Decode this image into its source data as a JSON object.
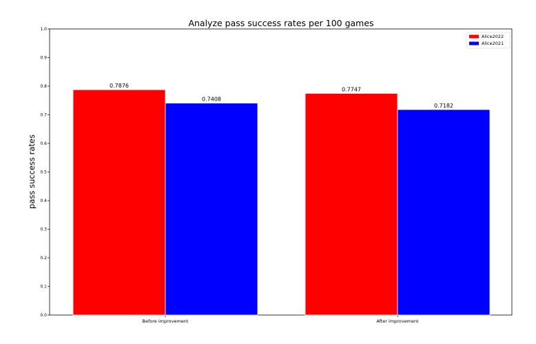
{
  "chart_data": {
    "type": "bar",
    "title": "Analyze pass success rates per 100 games",
    "xlabel": "",
    "ylabel": "pass success rates",
    "categories": [
      "Before improvement",
      "After improvement"
    ],
    "series": [
      {
        "name": "Alice2022",
        "color": "#ff0000",
        "values": [
          0.7876,
          0.7747
        ],
        "labels": [
          "0.7876",
          "0.7747"
        ]
      },
      {
        "name": "Alice2021",
        "color": "#0000ff",
        "values": [
          0.7408,
          0.7182
        ],
        "labels": [
          "0.7408",
          "0.7182"
        ]
      }
    ],
    "ylim": [
      0.0,
      1.0
    ],
    "yticks": [
      "0.0",
      "0.1",
      "0.2",
      "0.3",
      "0.4",
      "0.5",
      "0.6",
      "0.7",
      "0.8",
      "0.9",
      "1.0"
    ],
    "grid": false,
    "legend_position": "top-right"
  }
}
